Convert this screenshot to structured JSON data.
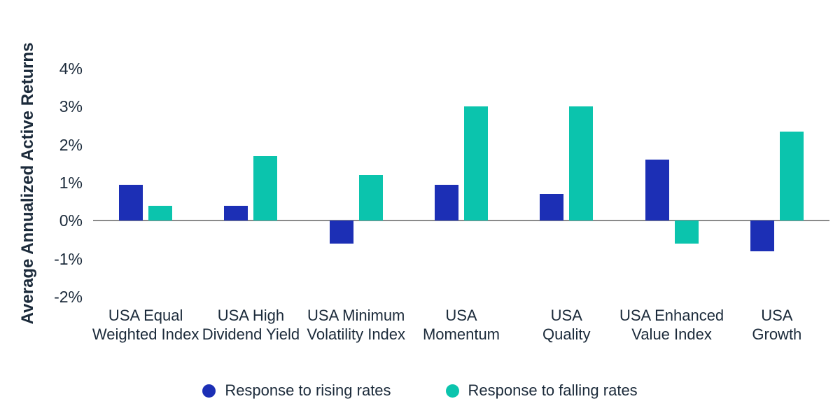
{
  "colors": {
    "rising_bar": "#1c2fb5",
    "falling_bar": "#0bc4ad",
    "text": "#1b2a3a",
    "baseline": "#8a8a8a",
    "background": "#ffffff"
  },
  "chart_data": {
    "type": "bar",
    "title": "",
    "xlabel": "",
    "ylabel": "Average Annualized Active Returns",
    "ylim": [
      -2,
      4
    ],
    "grid": false,
    "legend_position": "bottom",
    "y_ticks": [
      {
        "value": 4,
        "label": "4%"
      },
      {
        "value": 3,
        "label": "3%"
      },
      {
        "value": 2,
        "label": "2%"
      },
      {
        "value": 1,
        "label": "1%"
      },
      {
        "value": 0,
        "label": "0%"
      },
      {
        "value": -1,
        "label": "-1%"
      },
      {
        "value": -2,
        "label": "-2%"
      }
    ],
    "categories": [
      "USA Equal\nWeighted Index",
      "USA High\nDividend Yield",
      "USA Minimum\nVolatility Index",
      "USA\nMomentum",
      "USA\nQuality",
      "USA Enhanced\nValue Index",
      "USA\nGrowth"
    ],
    "series": [
      {
        "name": "Response to rising rates",
        "color": "#1c2fb5",
        "values": [
          0.95,
          0.4,
          -0.6,
          0.95,
          0.7,
          1.6,
          -0.8
        ]
      },
      {
        "name": "Response to falling rates",
        "color": "#0bc4ad",
        "values": [
          0.4,
          1.7,
          1.2,
          3.0,
          3.0,
          -0.6,
          2.35
        ]
      }
    ]
  }
}
